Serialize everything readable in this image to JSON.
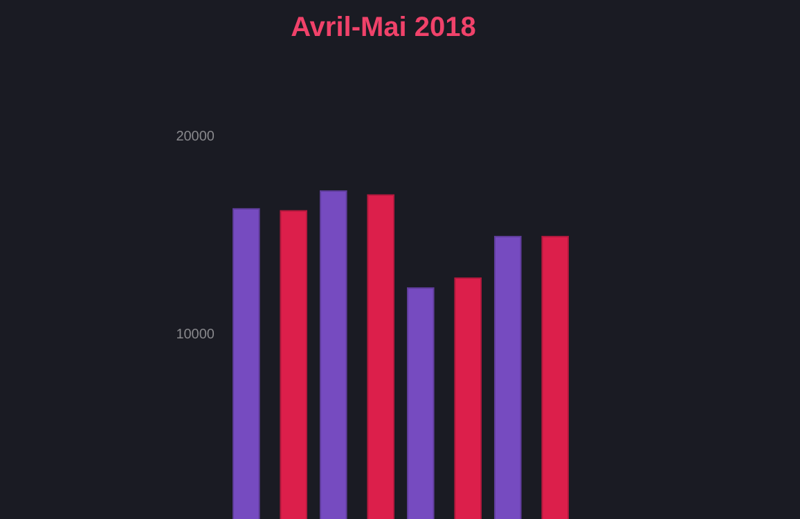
{
  "chart_data": {
    "type": "bar",
    "title": "Avril-Mai 2018",
    "categories": [
      null,
      null,
      null,
      null
    ],
    "series": [
      {
        "color": "#764bc0",
        "values": [
          16300,
          17200,
          12300,
          14900
        ]
      },
      {
        "color": "#dc1f4b",
        "values": [
          16200,
          17000,
          12800,
          14900
        ]
      }
    ],
    "ylim": [
      0,
      20000
    ],
    "yticks": [
      10000,
      20000
    ],
    "grid": false
  }
}
